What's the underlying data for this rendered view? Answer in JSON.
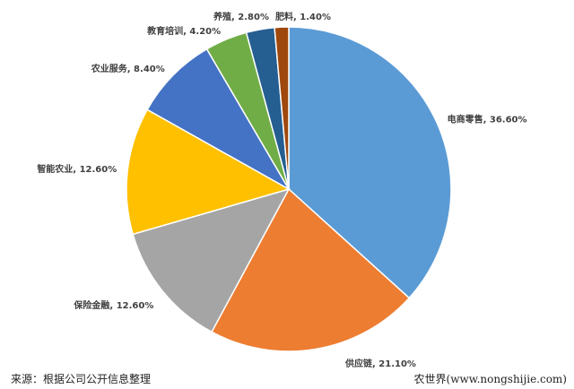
{
  "chart_data": {
    "type": "pie",
    "start": "12 o'clock, clockwise",
    "categories": [
      "电商零售",
      "供应链",
      "保险金融",
      "智能农业",
      "农业服务",
      "教育培训",
      "养殖",
      "肥料"
    ],
    "values": [
      36.6,
      21.1,
      12.6,
      12.6,
      8.4,
      4.2,
      2.8,
      1.4
    ],
    "labels": [
      "电商零售, 36.60%",
      "供应链, 21.10%",
      "保险金融, 12.60%",
      "智能农业, 12.60%",
      "农业服务, 8.40%",
      "教育培训, 4.20%",
      "养殖, 2.80%",
      "肥料, 1.40%"
    ],
    "colors": [
      "#5B9BD5",
      "#ED7D31",
      "#A5A5A5",
      "#FFC000",
      "#4472C4",
      "#70AD47",
      "#255E91",
      "#9E480E"
    ]
  },
  "footer": {
    "source": "来源：根据公司公开信息整理",
    "credit": "农世界(www.nongshijie.com)"
  }
}
